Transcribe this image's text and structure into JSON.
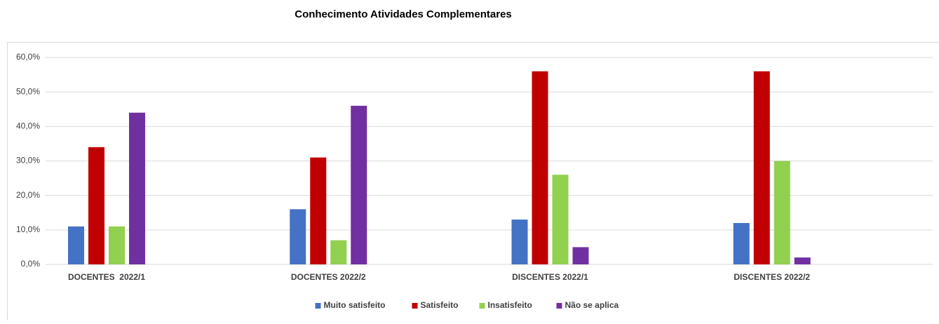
{
  "chart_data": {
    "type": "bar",
    "title": "Conhecimento Atividades Complementares",
    "categories": [
      "DOCENTES  2022/1",
      "DOCENTES 2022/2",
      "DISCENTES 2022/1",
      "DISCENTES 2022/2"
    ],
    "series": [
      {
        "name": "Muito satisfeito",
        "color": "#4472c4",
        "values": [
          11,
          16,
          13,
          12
        ]
      },
      {
        "name": "Satisfeito",
        "color": "#c00000",
        "values": [
          34,
          31,
          56,
          56
        ]
      },
      {
        "name": "Insatisfeito",
        "color": "#92d050",
        "values": [
          11,
          7,
          26,
          30
        ]
      },
      {
        "name": "Não se aplica",
        "color": "#7030a0",
        "values": [
          44,
          46,
          5,
          2
        ]
      }
    ],
    "ylim": [
      0,
      60
    ],
    "yticks": [
      {
        "value": 0,
        "label": "0,0%"
      },
      {
        "value": 10,
        "label": "10,0%"
      },
      {
        "value": 20,
        "label": "20,0%"
      },
      {
        "value": 30,
        "label": "30,0%"
      },
      {
        "value": 40,
        "label": "40,0%"
      },
      {
        "value": 50,
        "label": "50,0%"
      },
      {
        "value": 60,
        "label": "60,0%"
      }
    ],
    "grid": true,
    "legend": "bottom"
  }
}
